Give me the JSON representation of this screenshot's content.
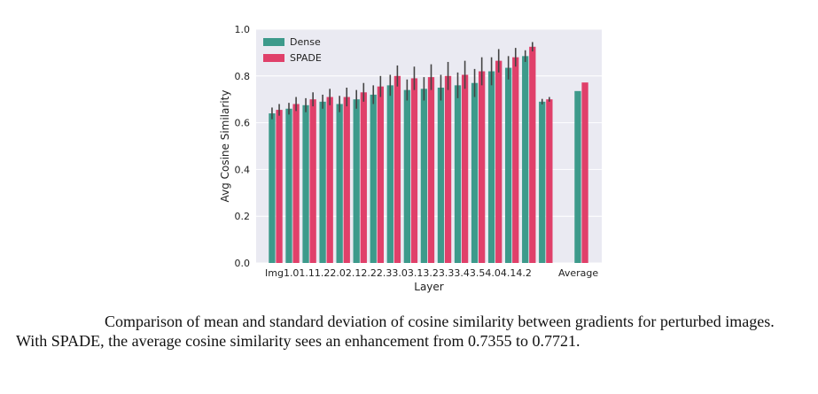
{
  "chart_data": {
    "type": "bar",
    "xlabel": "Layer",
    "ylabel": "Avg Cosine Similarity",
    "ylim": [
      0.0,
      1.0
    ],
    "yticks": [
      "0.0",
      "0.2",
      "0.4",
      "0.6",
      "0.8",
      "1.0"
    ],
    "categories": [
      "Img",
      "1.0",
      "1.1",
      "1.2",
      "2.0",
      "2.1",
      "2.2",
      "2.3",
      "3.0",
      "3.1",
      "3.2",
      "3.3",
      "3.4",
      "3.5",
      "4.0",
      "4.1",
      "4.2",
      "Average"
    ],
    "xtick_text": "Img1.01.11.22.02.12.22.33.03.13.23.33.43.54.04.14.2",
    "xtick_last": "Average",
    "grid": true,
    "legend_position": "top-left",
    "series": [
      {
        "name": "Dense",
        "color": "#3d9a8b",
        "values": [
          0.64,
          0.66,
          0.675,
          0.69,
          0.68,
          0.7,
          0.72,
          0.76,
          0.74,
          0.745,
          0.75,
          0.76,
          0.77,
          0.82,
          0.835,
          0.885,
          0.69,
          0.7355
        ],
        "errors": [
          0.025,
          0.025,
          0.03,
          0.03,
          0.035,
          0.04,
          0.04,
          0.045,
          0.045,
          0.05,
          0.055,
          0.055,
          0.06,
          0.06,
          0.05,
          0.025,
          0.012,
          0
        ]
      },
      {
        "name": "SPADE",
        "color": "#e0406a",
        "values": [
          0.655,
          0.68,
          0.7,
          0.71,
          0.71,
          0.73,
          0.755,
          0.8,
          0.79,
          0.795,
          0.8,
          0.805,
          0.82,
          0.865,
          0.88,
          0.925,
          0.7,
          0.7721
        ],
        "errors": [
          0.025,
          0.03,
          0.03,
          0.035,
          0.04,
          0.04,
          0.045,
          0.045,
          0.05,
          0.055,
          0.06,
          0.06,
          0.06,
          0.05,
          0.04,
          0.02,
          0.01,
          0
        ]
      }
    ]
  },
  "caption": "Comparison of mean and standard deviation of cosine similarity between gradients for perturbed images. With SPADE, the average cosine similarity sees an enhancement from 0.7355 to 0.7721."
}
